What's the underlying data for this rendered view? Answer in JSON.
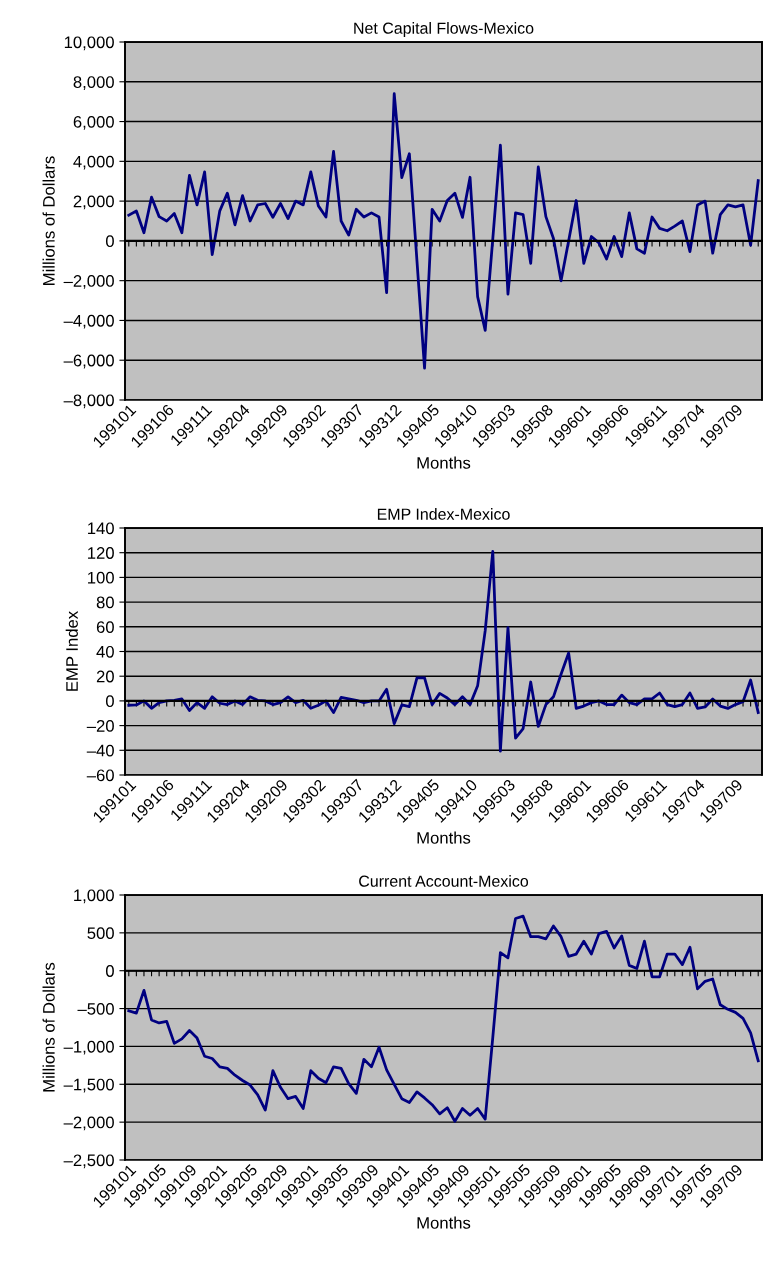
{
  "chart_data": [
    {
      "type": "line",
      "title": "Net Capital Flows-Mexico",
      "xlabel": "Months",
      "ylabel": "Millions of Dollars",
      "categories": [
        "199101",
        null,
        null,
        null,
        null,
        "199106",
        null,
        null,
        null,
        null,
        "199111",
        null,
        null,
        null,
        null,
        "199204",
        null,
        null,
        null,
        null,
        "199209",
        null,
        null,
        null,
        null,
        "199302",
        null,
        null,
        null,
        null,
        "199307",
        null,
        null,
        null,
        null,
        "199312",
        null,
        null,
        null,
        null,
        "199405",
        null,
        null,
        null,
        null,
        "199410",
        null,
        null,
        null,
        null,
        "199503",
        null,
        null,
        null,
        null,
        "199508",
        null,
        null,
        null,
        null,
        "199601",
        null,
        null,
        null,
        null,
        "199606",
        null,
        null,
        null,
        null,
        "199611",
        null,
        null,
        null,
        null,
        "199704",
        null,
        null,
        null,
        null,
        "199709",
        null,
        null,
        null
      ],
      "series": [
        {
          "color": "#000080",
          "values": [
            1290,
            1500,
            410,
            2200,
            1220,
            1000,
            1380,
            410,
            3290,
            1810,
            3470,
            -690,
            1510,
            2400,
            810,
            2280,
            1000,
            1810,
            1880,
            1190,
            1880,
            1120,
            2000,
            1810,
            3470,
            1760,
            1200,
            4500,
            1000,
            290,
            1590,
            1200,
            1410,
            1200,
            -2600,
            7400,
            3180,
            4380,
            -1000,
            -6400,
            1590,
            1000,
            2030,
            2400,
            1180,
            3200,
            -2800,
            -4500,
            100,
            4820,
            -2680,
            1410,
            1320,
            -1130,
            3720,
            1220,
            120,
            -2010,
            0,
            2030,
            -1130,
            220,
            -100,
            -910,
            220,
            -790,
            1410,
            -400,
            -620,
            1200,
            630,
            510,
            740,
            1000,
            -540,
            1810,
            2000,
            -620,
            1320,
            1810,
            1710,
            1810,
            -220,
            3030
          ]
        }
      ],
      "ylim": [
        -8000,
        10000
      ],
      "yticks": [
        {
          "value": -8000,
          "label": "–8,000"
        },
        {
          "value": -6000,
          "label": "–6,000"
        },
        {
          "value": -4000,
          "label": "–4,000"
        },
        {
          "value": -2000,
          "label": "–2,000"
        },
        0,
        {
          "value": 2000,
          "label": "2,000"
        },
        {
          "value": 4000,
          "label": "4,000"
        },
        {
          "value": 6000,
          "label": "6,000"
        },
        {
          "value": 8000,
          "label": "8,000"
        },
        {
          "value": 10000,
          "label": "10,000"
        }
      ],
      "grid": "y",
      "marker": "none",
      "line_style": "solid"
    },
    {
      "type": "line",
      "title": "EMP Index-Mexico",
      "xlabel": "Months",
      "ylabel": "EMP Index",
      "categories": [
        "199101",
        null,
        null,
        null,
        null,
        "199106",
        null,
        null,
        null,
        null,
        "199111",
        null,
        null,
        null,
        null,
        "199204",
        null,
        null,
        null,
        null,
        "199209",
        null,
        null,
        null,
        null,
        "199302",
        null,
        null,
        null,
        null,
        "199307",
        null,
        null,
        null,
        null,
        "199312",
        null,
        null,
        null,
        null,
        "199405",
        null,
        null,
        null,
        null,
        "199410",
        null,
        null,
        null,
        null,
        "199503",
        null,
        null,
        null,
        null,
        "199508",
        null,
        null,
        null,
        null,
        "199601",
        null,
        null,
        null,
        null,
        "199606",
        null,
        null,
        null,
        null,
        "199611",
        null,
        null,
        null,
        null,
        "199704",
        null,
        null,
        null,
        null,
        "199709",
        null,
        null,
        null
      ],
      "series": [
        {
          "color": "#000080",
          "values": [
            -3.5,
            -3.3,
            0,
            -6,
            -1.4,
            0,
            0.5,
            1.6,
            -7.8,
            -1.4,
            -6,
            3.3,
            -1.9,
            -3,
            0,
            -3,
            3.3,
            0.5,
            0,
            -3,
            -1.4,
            3.3,
            -1.4,
            0.5,
            -6,
            -3.5,
            0,
            -9.4,
            2.8,
            1.6,
            0.5,
            -1.4,
            0,
            0,
            9.4,
            -18.4,
            -3.3,
            -4.7,
            18.6,
            18.6,
            -3,
            6.1,
            2.4,
            -3,
            3.3,
            -3,
            12.2,
            56.9,
            121,
            -40.7,
            59.3,
            -30.1,
            -22.4,
            15.3,
            -20.7,
            -3,
            3.3,
            21.6,
            38.8,
            -6.1,
            -4.2,
            -1.4,
            0,
            -3,
            -3,
            4.7,
            -1.4,
            -3,
            1.6,
            1.6,
            6.4,
            -3,
            -4.7,
            -3,
            6.4,
            -6.1,
            -4.9,
            1.6,
            -4.2,
            -6.1,
            -3,
            -0.7,
            16.9,
            -9.4
          ]
        }
      ],
      "ylim": [
        -60,
        140
      ],
      "yticks": [
        {
          "value": -60,
          "label": "–60"
        },
        {
          "value": -40,
          "label": "–40"
        },
        {
          "value": -20,
          "label": "–20"
        },
        0,
        20,
        40,
        60,
        80,
        100,
        120,
        140
      ],
      "grid": "y",
      "marker": "none",
      "line_style": "solid"
    },
    {
      "type": "line",
      "title": "Current Account-Mexico",
      "xlabel": "Months",
      "ylabel": "Millions of Dollars",
      "categories": [
        "199101",
        null,
        null,
        null,
        "199105",
        null,
        null,
        null,
        "199109",
        null,
        null,
        null,
        "199201",
        null,
        null,
        null,
        "199205",
        null,
        null,
        null,
        "199209",
        null,
        null,
        null,
        "199301",
        null,
        null,
        null,
        "199305",
        null,
        null,
        null,
        "199309",
        null,
        null,
        null,
        "199401",
        null,
        null,
        null,
        "199405",
        null,
        null,
        null,
        "199409",
        null,
        null,
        null,
        "199501",
        null,
        null,
        null,
        "199505",
        null,
        null,
        null,
        "199509",
        null,
        null,
        null,
        "199601",
        null,
        null,
        null,
        "199605",
        null,
        null,
        null,
        "199609",
        null,
        null,
        null,
        "199701",
        null,
        null,
        null,
        "199705",
        null,
        null,
        null,
        "199709",
        null,
        null,
        null
      ],
      "series": [
        {
          "color": "#000080",
          "values": [
            -530,
            -560,
            -260,
            -650,
            -690,
            -670,
            -960,
            -900,
            -790,
            -890,
            -1130,
            -1160,
            -1270,
            -1290,
            -1380,
            -1450,
            -1510,
            -1640,
            -1840,
            -1320,
            -1540,
            -1690,
            -1660,
            -1820,
            -1320,
            -1420,
            -1480,
            -1270,
            -1290,
            -1490,
            -1620,
            -1170,
            -1270,
            -1010,
            -1310,
            -1500,
            -1690,
            -1740,
            -1600,
            -1680,
            -1770,
            -1890,
            -1810,
            -1990,
            -1820,
            -1910,
            -1820,
            -1960,
            -880,
            240,
            170,
            690,
            720,
            450,
            450,
            420,
            590,
            450,
            190,
            220,
            390,
            220,
            490,
            520,
            300,
            460,
            70,
            30,
            390,
            -80,
            -80,
            220,
            220,
            80,
            310,
            -240,
            -140,
            -110,
            -450,
            -510,
            -550,
            -630,
            -820,
            -1190
          ]
        }
      ],
      "ylim": [
        -2500,
        1000
      ],
      "yticks": [
        {
          "value": -2500,
          "label": "–2,500"
        },
        {
          "value": -2000,
          "label": "–2,000"
        },
        {
          "value": -1500,
          "label": "–1,500"
        },
        {
          "value": -1000,
          "label": "–1,000"
        },
        {
          "value": -500,
          "label": "–500"
        },
        0,
        {
          "value": 500,
          "label": "500"
        },
        {
          "value": 1000,
          "label": "1,000"
        }
      ],
      "grid": "y",
      "marker": "none",
      "line_style": "solid"
    }
  ]
}
